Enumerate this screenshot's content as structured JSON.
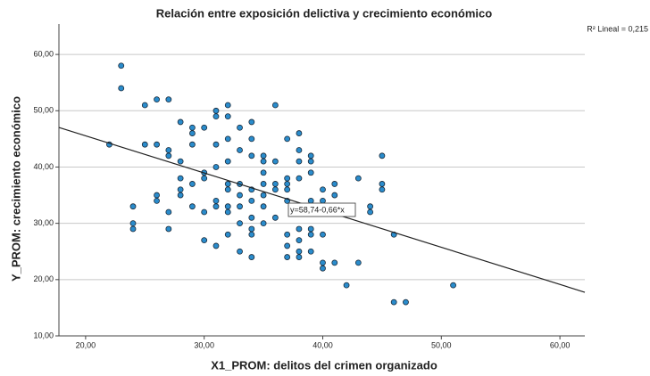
{
  "chart_data": {
    "type": "scatter",
    "title": "Relación entre exposición delictiva y crecimiento económico",
    "x_label": "X1_PROM: delitos del crimen organizado",
    "y_label": "Y_PROM: crecimiento económico",
    "r2_label": "R² Lineal = 0,215",
    "fit": {
      "intercept": 58.74,
      "slope": -0.66,
      "label": "y=58,74-0,66*x",
      "color": "#222222"
    },
    "color": "#2a8ccc",
    "grid": true,
    "xlim": [
      17.75,
      62.1
    ],
    "ylim": [
      10,
      65.4
    ],
    "xticks": [
      {
        "value": 20,
        "label": "20,00"
      },
      {
        "value": 30,
        "label": "30,00"
      },
      {
        "value": 40,
        "label": "40,00"
      },
      {
        "value": 50,
        "label": "50,00"
      },
      {
        "value": 60,
        "label": "60,00"
      }
    ],
    "yticks": [
      {
        "value": 10,
        "label": "10,00"
      },
      {
        "value": 20,
        "label": "20,00"
      },
      {
        "value": 30,
        "label": "30,00"
      },
      {
        "value": 40,
        "label": "40,00"
      },
      {
        "value": 50,
        "label": "50,00"
      },
      {
        "value": 60,
        "label": "60,00"
      }
    ],
    "x": [
      23,
      23,
      22,
      24,
      24,
      24,
      25,
      25,
      26,
      26,
      26,
      26,
      27,
      27,
      27,
      27,
      27,
      28,
      28,
      28,
      28,
      28,
      29,
      29,
      29,
      29,
      29,
      30,
      30,
      30,
      30,
      30,
      31,
      31,
      31,
      31,
      31,
      31,
      31,
      32,
      32,
      32,
      32,
      32,
      32,
      32,
      32,
      32,
      33,
      33,
      33,
      33,
      33,
      33,
      33,
      34,
      34,
      34,
      34,
      34,
      34,
      34,
      34,
      34,
      35,
      35,
      35,
      35,
      35,
      35,
      35,
      36,
      36,
      36,
      36,
      36,
      37,
      37,
      37,
      37,
      37,
      37,
      37,
      37,
      38,
      38,
      38,
      38,
      38,
      38,
      38,
      38,
      39,
      39,
      39,
      39,
      39,
      39,
      39,
      40,
      40,
      40,
      40,
      40,
      41,
      41,
      41,
      42,
      43,
      43,
      44,
      44,
      45,
      45,
      45,
      46,
      46,
      47,
      51
    ],
    "values": [
      58,
      54,
      44,
      33,
      30,
      29,
      51,
      44,
      52,
      44,
      35,
      34,
      52,
      43,
      42,
      32,
      29,
      48,
      41,
      38,
      36,
      35,
      47,
      46,
      44,
      37,
      33,
      47,
      39,
      38,
      32,
      27,
      50,
      49,
      44,
      40,
      34,
      33,
      26,
      51,
      49,
      45,
      41,
      37,
      36,
      33,
      32,
      28,
      47,
      43,
      37,
      35,
      33,
      30,
      25,
      48,
      45,
      42,
      36,
      34,
      31,
      29,
      28,
      24,
      42,
      41,
      39,
      37,
      35,
      33,
      30,
      51,
      41,
      37,
      36,
      31,
      45,
      38,
      37,
      36,
      34,
      28,
      26,
      24,
      46,
      43,
      41,
      38,
      29,
      27,
      25,
      24,
      42,
      41,
      39,
      34,
      29,
      28,
      25,
      36,
      34,
      28,
      23,
      22,
      37,
      35,
      23,
      19,
      38,
      23,
      33,
      32,
      42,
      37,
      36,
      28,
      16,
      16,
      19
    ]
  }
}
